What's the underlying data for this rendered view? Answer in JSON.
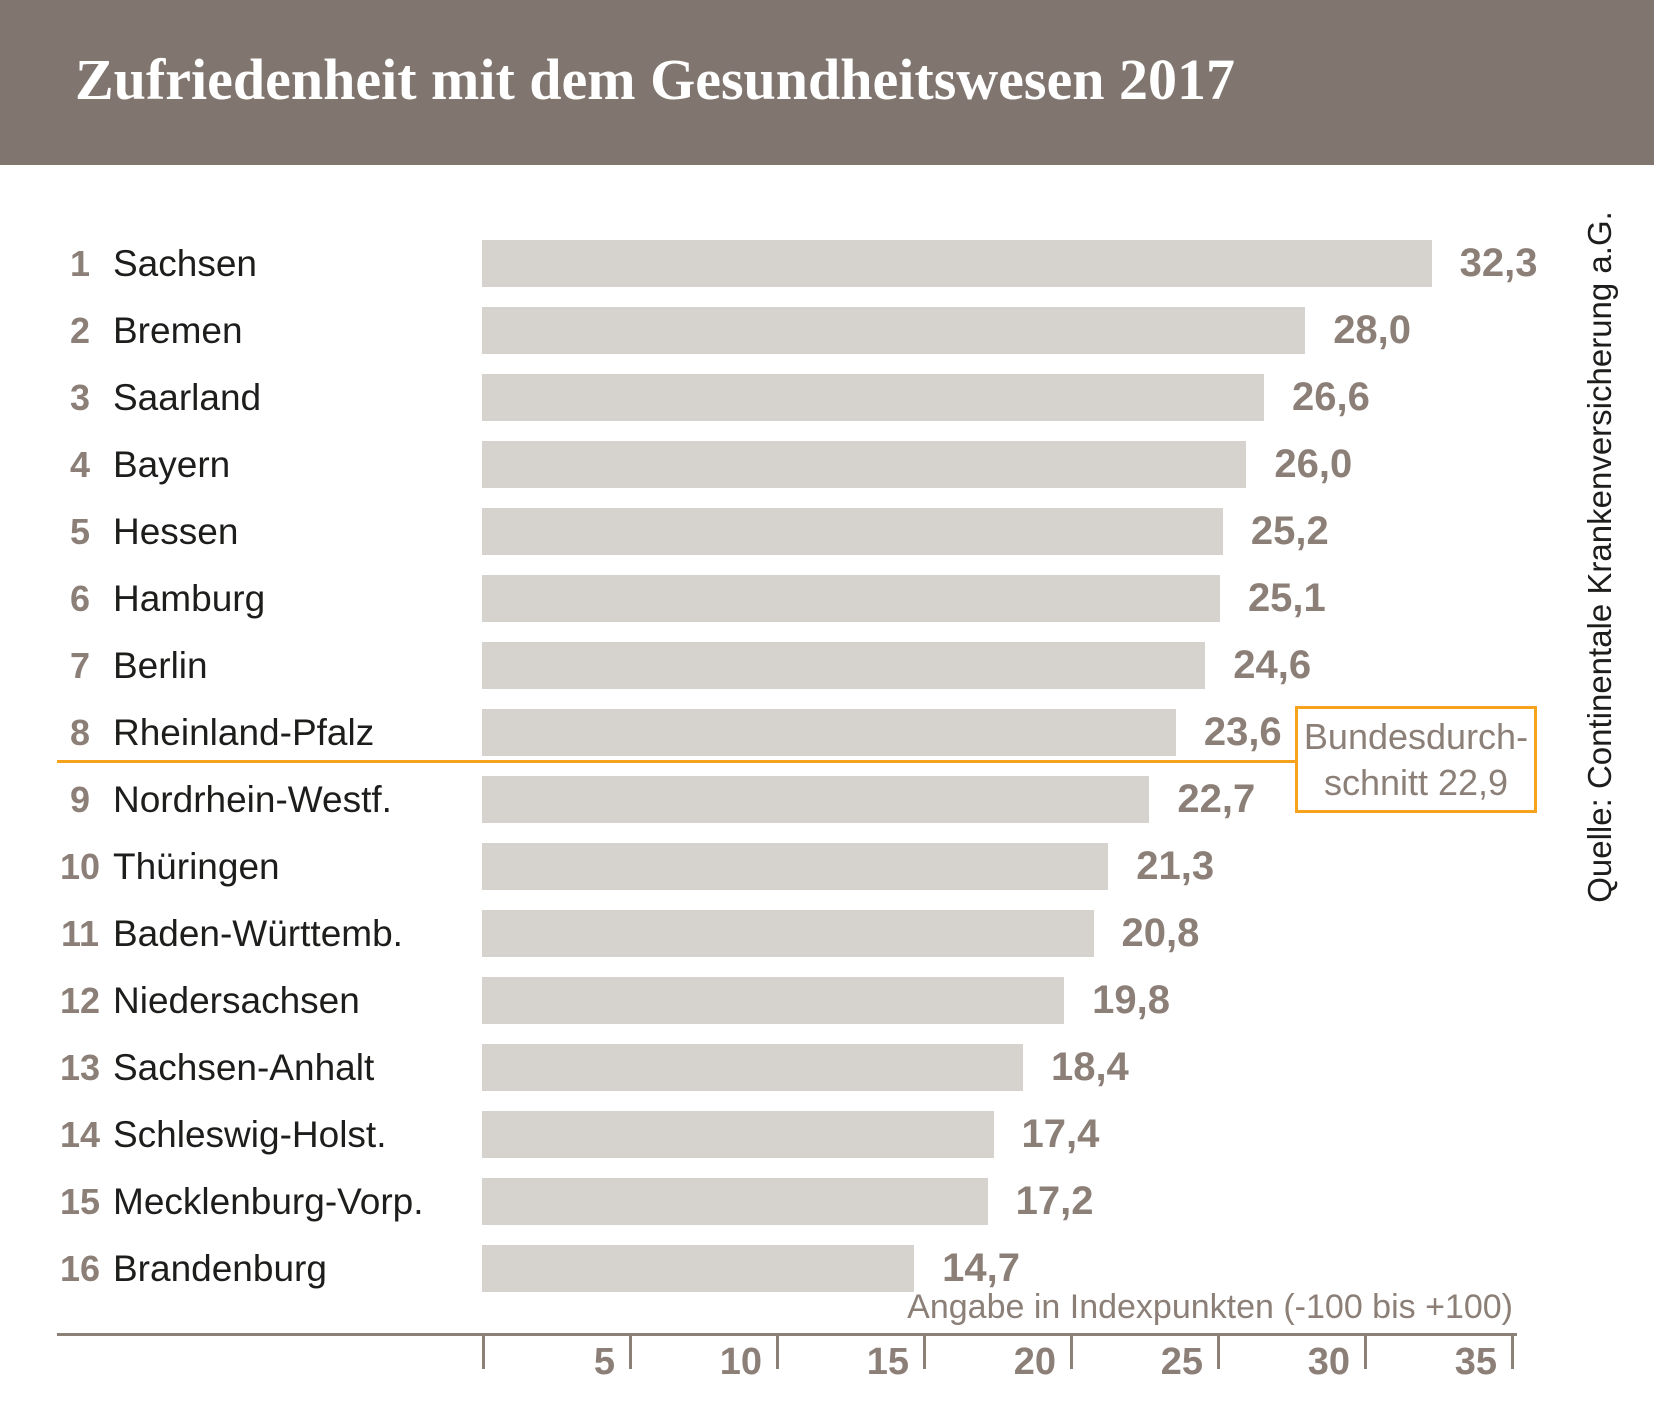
{
  "header": {
    "title": "Zufriedenheit mit dem Gesundheitswesen 2017"
  },
  "chart_data": {
    "type": "bar",
    "orientation": "horizontal",
    "title": "Zufriedenheit mit dem Gesundheitswesen 2017",
    "ranks": [
      "1",
      "2",
      "3",
      "4",
      "5",
      "6",
      "7",
      "8",
      "9",
      "10",
      "11",
      "12",
      "13",
      "14",
      "15",
      "16"
    ],
    "categories": [
      "Sachsen",
      "Bremen",
      "Saarland",
      "Bayern",
      "Hessen",
      "Hamburg",
      "Berlin",
      "Rheinland-Pfalz",
      "Nordrhein-Westf.",
      "Thüringen",
      "Baden-Württemb.",
      "Niedersachsen",
      "Sachsen-Anhalt",
      "Schleswig-Holst.",
      "Mecklenburg-Vorp.",
      "Brandenburg"
    ],
    "values": [
      32.3,
      28.0,
      26.6,
      26.0,
      25.2,
      25.1,
      24.6,
      23.6,
      22.7,
      21.3,
      20.8,
      19.8,
      18.4,
      17.4,
      17.2,
      14.7
    ],
    "value_labels": [
      "32,3",
      "28,0",
      "26,6",
      "26,0",
      "25,2",
      "25,1",
      "24,6",
      "23,6",
      "22,7",
      "21,3",
      "20,8",
      "19,8",
      "18,4",
      "17,4",
      "17,2",
      "14,7"
    ],
    "xlim": [
      0,
      37
    ],
    "x_ticks": [
      5,
      10,
      15,
      20,
      25,
      30,
      35
    ],
    "grid": false,
    "legend": null,
    "average_line": {
      "value": 22.9,
      "label_line1": "Bundesdurch-",
      "label_line2": "schnitt 22,9",
      "separates_ranks": "8 | 9"
    },
    "axis_note": "Angabe in Indexpunkten (-100 bis +100)",
    "source": "Quelle: Continentale Krankenversicherung a.G.",
    "colors": {
      "bar": "#D6D2CD",
      "accent_orange": "#F7A21C",
      "value_text": "#8B7F77",
      "state_text": "#1D1D1B",
      "header_bg": "#80766F",
      "header_text": "#FFFFFF",
      "axis": "#8C8177"
    }
  }
}
